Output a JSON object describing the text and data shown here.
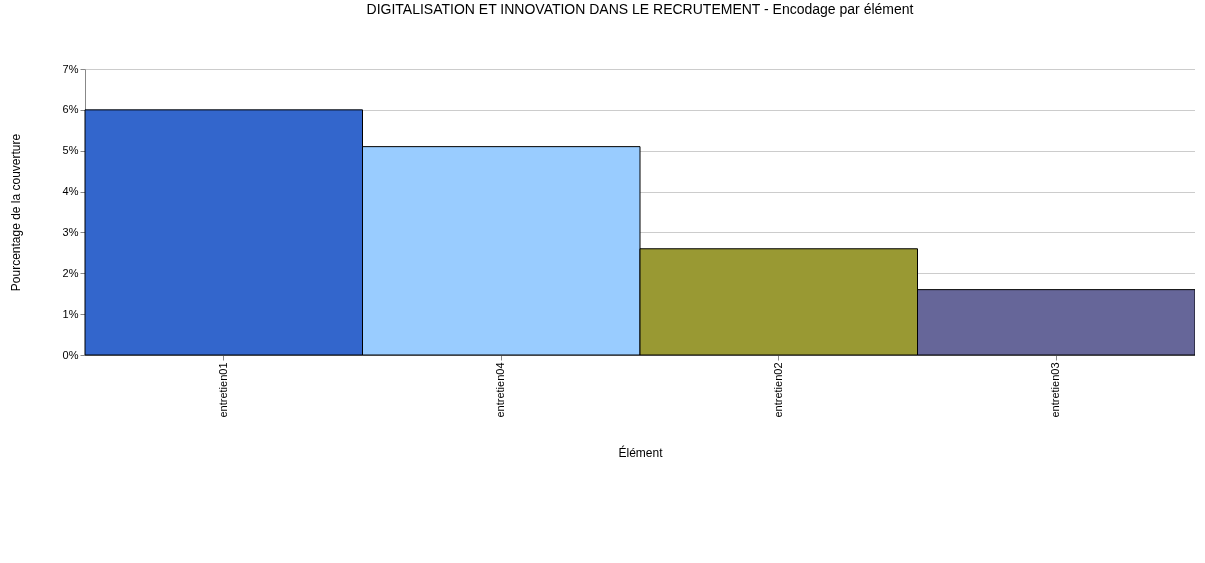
{
  "chart_data": {
    "type": "bar",
    "title": "DIGITALISATION ET INNOVATION DANS LE RECRUTEMENT - Encodage par élément",
    "xlabel": "Élément",
    "ylabel": "Pourcentage de la couverture",
    "categories": [
      "entretien01",
      "entretien04",
      "entretien02",
      "entretien03"
    ],
    "values": [
      6.0,
      5.1,
      2.6,
      1.6
    ],
    "colors": [
      "#3366cc",
      "#99ccff",
      "#999933",
      "#666699"
    ],
    "ylim": [
      0,
      7
    ],
    "yticks": [
      {
        "value": 0,
        "label": "0%"
      },
      {
        "value": 1,
        "label": "1%"
      },
      {
        "value": 2,
        "label": "2%"
      },
      {
        "value": 3,
        "label": "3%"
      },
      {
        "value": 4,
        "label": "4%"
      },
      {
        "value": 5,
        "label": "5%"
      },
      {
        "value": 6,
        "label": "6%"
      },
      {
        "value": 7,
        "label": "7%"
      }
    ],
    "grid": "y",
    "legend": false
  }
}
